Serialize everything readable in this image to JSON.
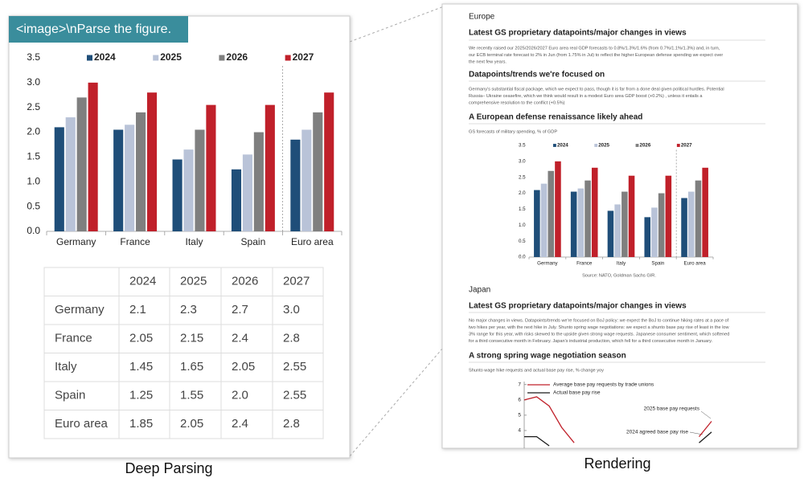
{
  "prompt": "<image>\\nParse the figure.",
  "captions": {
    "left": "Deep Parsing",
    "right": "Rendering"
  },
  "chart_data": [
    {
      "type": "bar",
      "categories": [
        "Germany",
        "France",
        "Italy",
        "Spain",
        "Euro area"
      ],
      "series": [
        {
          "name": "2024",
          "color": "#1f4e79",
          "values": [
            2.1,
            2.05,
            1.45,
            1.25,
            1.85
          ]
        },
        {
          "name": "2025",
          "color": "#b9c3d8",
          "values": [
            2.3,
            2.15,
            1.65,
            1.55,
            2.05
          ]
        },
        {
          "name": "2026",
          "color": "#7f7f7f",
          "values": [
            2.7,
            2.4,
            2.05,
            2.0,
            2.4
          ]
        },
        {
          "name": "2027",
          "color": "#c0202a",
          "values": [
            3.0,
            2.8,
            2.55,
            2.55,
            2.8
          ]
        }
      ],
      "ylim": [
        0,
        3.5
      ],
      "yticks": [
        {
          "value": 0,
          "label": "0.0"
        },
        0.5,
        {
          "value": 1,
          "label": "1.0"
        },
        1.5,
        {
          "value": 2,
          "label": "2.0"
        },
        2.5,
        {
          "value": 3,
          "label": "3.0"
        },
        3.5
      ],
      "legend": "top",
      "grid": false
    },
    {
      "type": "bar",
      "title": "A European defense renaissance likely ahead",
      "subtitle": "GS forecasts of military spending, % of GDP",
      "source": "Source: NATO, Goldman Sachs GIR.",
      "categories": [
        "Germany",
        "France",
        "Italy",
        "Spain",
        "Euro area"
      ],
      "series": [
        {
          "name": "2024",
          "color": "#1f4e79",
          "values": [
            2.1,
            2.05,
            1.45,
            1.25,
            1.85
          ]
        },
        {
          "name": "2025",
          "color": "#b9c3d8",
          "values": [
            2.3,
            2.15,
            1.65,
            1.55,
            2.05
          ]
        },
        {
          "name": "2026",
          "color": "#7f7f7f",
          "values": [
            2.7,
            2.4,
            2.05,
            2.0,
            2.4
          ]
        },
        {
          "name": "2027",
          "color": "#c0202a",
          "values": [
            3.0,
            2.8,
            2.55,
            2.55,
            2.8
          ]
        }
      ],
      "ylim": [
        0,
        3.5
      ],
      "yticks": [
        {
          "value": 0,
          "label": "0.0"
        },
        0.5,
        {
          "value": 1,
          "label": "1.0"
        },
        1.5,
        {
          "value": 2,
          "label": "2.0"
        },
        2.5,
        {
          "value": 3,
          "label": "3.0"
        },
        3.5
      ],
      "legend": "top",
      "grid": false
    },
    {
      "type": "line",
      "title": "A strong spring wage negotiation season",
      "subtitle": "Shunto wage hike requests and actual base pay rise, % change yoy",
      "categories": [
        null,
        null,
        null,
        null,
        null,
        null,
        null,
        null,
        null,
        null,
        null,
        null,
        null,
        null,
        null,
        null
      ],
      "series": [
        {
          "name": "Average base pay requests by trade unions",
          "color": "#c0202a",
          "values": [
            6.0,
            6.2,
            5.6,
            4.2,
            3.2,
            null,
            null,
            null,
            null,
            null,
            null,
            null,
            null,
            null,
            3.6,
            4.6
          ]
        },
        {
          "name": "Actual base pay rise",
          "color": "#1a1a1a",
          "values": [
            3.6,
            3.6,
            3.0,
            null,
            null,
            null,
            null,
            null,
            null,
            null,
            null,
            null,
            null,
            null,
            3.2,
            3.9
          ]
        }
      ],
      "annotations": [
        "2025 base pay requests",
        "2024 agreed base pay rise"
      ],
      "ylim": [
        3,
        7.2
      ],
      "yticks": [
        4,
        5,
        6,
        7
      ],
      "legend": "top-left"
    }
  ],
  "table": {
    "header": [
      "2024",
      "2025",
      "2026",
      "2027"
    ],
    "rows": [
      [
        "Germany",
        "2.1",
        "2.3",
        "2.7",
        "3.0"
      ],
      [
        "France",
        "2.05",
        "2.15",
        "2.4",
        "2.8"
      ],
      [
        "Italy",
        "1.45",
        "1.65",
        "2.05",
        "2.55"
      ],
      [
        "Spain",
        "1.25",
        "1.55",
        "2.0",
        "2.55"
      ],
      [
        "Euro area",
        "1.85",
        "2.05",
        "2.4",
        "2.8"
      ]
    ]
  },
  "document": {
    "europe": {
      "region": "Europe",
      "heading1": "Latest GS proprietary datapoints/major changes in views",
      "para1": [
        "We recently raised our 2025/2026/2027 Euro area real GDP forecasts to 0.8%/1.3%/1.6% (from 0.7%/1.1%/1.3%) and, in turn,",
        "our ECB terminal rate forecast to 2% in Jun (from 1.75% in Jul) to reflect the higher European defense spending we expect over",
        "the next few years."
      ],
      "heading2": "Datapoints/trends we're focused on",
      "para2": [
        "Germany's substantial fiscal package, which we expect to pass, though it is far from a done deal given political hurdles. Potential",
        "Russia– Ukraine ceasefire, which we think would result in a modest Euro area GDP boost (+0.2%) , unless it entails a",
        "comprehensive resolution to the conflict (+0.5%)"
      ]
    },
    "japan": {
      "region": "Japan",
      "heading1": "Latest GS proprietary datapoints/major changes in views",
      "para1": [
        "No major changes in views. Datapoints/trends we're focused on BoJ policy: we expect the BoJ to continue hiking rates at a pace of",
        "two hikes per year, with the next hike in July. Shunto spring wage negotiations: we expect a shunto base pay rise of least in the low",
        "3% range for this year, with risks skewed to the upside given strong wage requests. Japanese consumer sentiment, which softened",
        "for a third consecutive month in February. Japan's industrial production, which fell for a third consecutive month in January."
      ]
    }
  }
}
